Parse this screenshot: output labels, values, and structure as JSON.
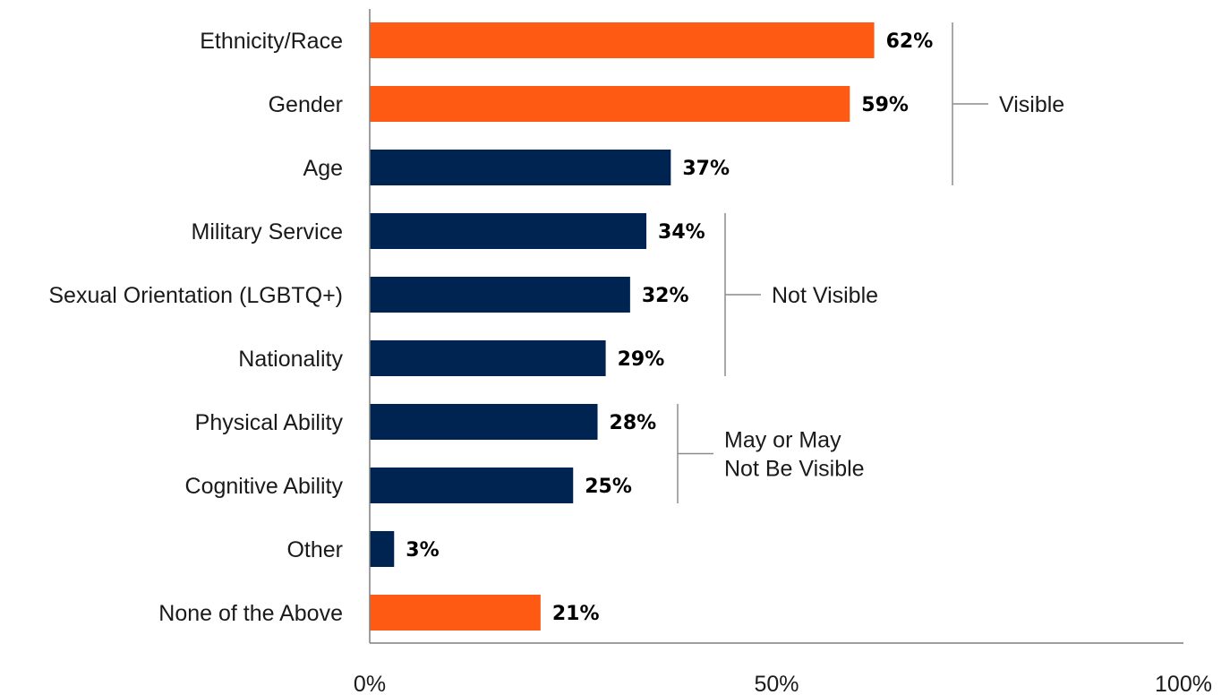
{
  "chart_data": {
    "type": "bar",
    "orientation": "horizontal",
    "categories": [
      "Ethnicity/Race",
      "Gender",
      "Age",
      "Military Service",
      "Sexual Orientation (LGBTQ+)",
      "Nationality",
      "Physical Ability",
      "Cognitive Ability",
      "Other",
      "None of the Above"
    ],
    "values": [
      62,
      59,
      37,
      34,
      32,
      29,
      28,
      25,
      3,
      21
    ],
    "value_labels": [
      "62%",
      "59%",
      "37%",
      "34%",
      "32%",
      "29%",
      "28%",
      "25%",
      "3%",
      "21%"
    ],
    "highlight": [
      true,
      true,
      false,
      false,
      false,
      false,
      false,
      false,
      false,
      true
    ],
    "xlim": [
      0,
      100
    ],
    "xticks": [
      0,
      50,
      100
    ],
    "xtick_labels": [
      "0%",
      "50%",
      "100%"
    ],
    "grid": false,
    "groups": [
      {
        "label_lines": [
          "Visible"
        ],
        "first": 0,
        "last": 2
      },
      {
        "label_lines": [
          "Not Visible"
        ],
        "first": 3,
        "last": 5
      },
      {
        "label_lines": [
          "May or May",
          "Not Be Visible"
        ],
        "first": 6,
        "last": 7
      }
    ],
    "colors": {
      "highlight": "#FF5A14",
      "default": "#002451",
      "axis": "#7f7f7f",
      "bracket": "#8c8c8c"
    }
  }
}
